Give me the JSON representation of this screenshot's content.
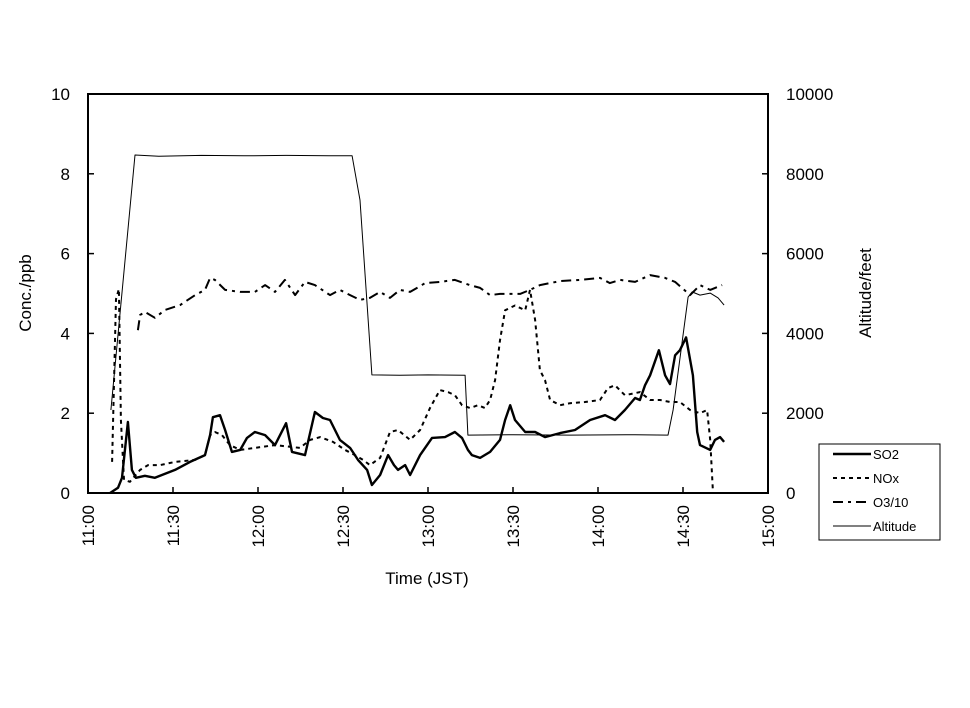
{
  "chart_data": {
    "type": "line",
    "title": "",
    "xlabel": "Time (JST)",
    "ylabel": "Conc./ppb",
    "y2label": "Altitude/feet",
    "x_unit": "minutes after 11:00",
    "xlim": [
      0,
      240
    ],
    "ylim": [
      0,
      10
    ],
    "y2lim": [
      0,
      10000
    ],
    "x_ticks": [
      {
        "value": 0,
        "label": "11:00"
      },
      {
        "value": 30,
        "label": "11:30"
      },
      {
        "value": 60,
        "label": "12:00"
      },
      {
        "value": 90,
        "label": "12:30"
      },
      {
        "value": 120,
        "label": "13:00"
      },
      {
        "value": 150,
        "label": "13:30"
      },
      {
        "value": 180,
        "label": "14:00"
      },
      {
        "value": 210,
        "label": "14:30"
      },
      {
        "value": 240,
        "label": "15:00"
      }
    ],
    "y_ticks": [
      {
        "value": 0,
        "label": "0"
      },
      {
        "value": 2,
        "label": "2"
      },
      {
        "value": 4,
        "label": "4"
      },
      {
        "value": 6,
        "label": "6"
      },
      {
        "value": 8,
        "label": "8"
      },
      {
        "value": 10,
        "label": "10"
      }
    ],
    "y2_ticks": [
      {
        "value": 0,
        "label": "0"
      },
      {
        "value": 2000,
        "label": "2000"
      },
      {
        "value": 4000,
        "label": "4000"
      },
      {
        "value": 6000,
        "label": "6000"
      },
      {
        "value": 8000,
        "label": "8000"
      },
      {
        "value": 10000,
        "label": "10000"
      }
    ],
    "grid": false,
    "legend_position": "bottom-right",
    "series": [
      {
        "name": "SO2",
        "axis": "left",
        "style": "solid-thick",
        "x": [
          7.8,
          10.6,
          12.0,
          14.1,
          15.5,
          16.9,
          20.1,
          23.6,
          27.2,
          30.7,
          36.0,
          41.3,
          43.1,
          44.1,
          46.6,
          48.4,
          50.8,
          53.7,
          56.1,
          58.9,
          62.5,
          66.0,
          69.9,
          72.0,
          76.6,
          80.1,
          82.9,
          85.4,
          88.9,
          92.5,
          95.3,
          98.5,
          100.2,
          103.1,
          105.9,
          108.0,
          109.4,
          111.9,
          113.7,
          117.2,
          121.4,
          126.0,
          129.5,
          132.0,
          134.1,
          135.5,
          138.4,
          141.9,
          145.4,
          147.2,
          149.0,
          150.7,
          154.3,
          157.8,
          161.3,
          166.6,
          171.9,
          177.2,
          182.5,
          186.0,
          189.5,
          193.1,
          194.8,
          196.6,
          198.4,
          201.5,
          203.7,
          205.4,
          207.2,
          208.9,
          211.1,
          213.5,
          215.0,
          216.0,
          219.6,
          221.3,
          223.1,
          224.5
        ],
        "y": [
          0,
          0.13,
          0.38,
          1.78,
          0.58,
          0.38,
          0.43,
          0.38,
          0.48,
          0.58,
          0.78,
          0.95,
          1.45,
          1.9,
          1.95,
          1.58,
          1.03,
          1.08,
          1.38,
          1.53,
          1.45,
          1.2,
          1.75,
          1.03,
          0.95,
          2.03,
          1.88,
          1.83,
          1.33,
          1.13,
          0.83,
          0.58,
          0.2,
          0.45,
          0.95,
          0.7,
          0.58,
          0.7,
          0.45,
          0.95,
          1.38,
          1.4,
          1.53,
          1.38,
          1.08,
          0.95,
          0.88,
          1.03,
          1.33,
          1.83,
          2.2,
          1.83,
          1.53,
          1.53,
          1.4,
          1.5,
          1.58,
          1.83,
          1.95,
          1.83,
          2.08,
          2.38,
          2.33,
          2.7,
          2.95,
          3.58,
          2.95,
          2.73,
          3.45,
          3.58,
          3.9,
          2.95,
          1.53,
          1.2,
          1.08,
          1.33,
          1.4,
          1.28
        ]
      },
      {
        "name": "NOx",
        "axis": "left",
        "style": "dotted",
        "x": [
          8.5,
          9.9,
          10.9,
          11.6,
          12.7,
          14.8,
          18.4,
          21.2,
          25.4,
          30.7,
          37.8,
          41.3,
          43.1,
          44.8,
          47.3,
          50.1,
          53.7,
          58.9,
          66.0,
          74.8,
          78.4,
          81.9,
          86.5,
          90.7,
          94.2,
          97.1,
          99.5,
          103.1,
          106.6,
          109.4,
          113.7,
          117.2,
          120.7,
          124.2,
          127.1,
          129.5,
          132.0,
          134.8,
          137.7,
          140.1,
          141.9,
          143.7,
          145.4,
          147.2,
          150.7,
          154.3,
          156.0,
          157.8,
          159.5,
          161.3,
          163.1,
          166.6,
          170.1,
          175.4,
          180.7,
          183.5,
          186.0,
          189.5,
          194.8,
          198.4,
          201.9,
          205.4,
          208.9,
          212.5,
          216.0,
          218.5,
          219.6,
          220.6
        ],
        "y": [
          0.78,
          4.86,
          5.11,
          1.83,
          0.33,
          0.28,
          0.58,
          0.7,
          0.7,
          0.78,
          0.83,
          0.95,
          1.45,
          1.53,
          1.45,
          1.2,
          1.08,
          1.13,
          1.2,
          1.13,
          1.33,
          1.4,
          1.28,
          1.08,
          0.95,
          0.83,
          0.7,
          0.88,
          1.53,
          1.58,
          1.33,
          1.58,
          2.13,
          2.58,
          2.53,
          2.45,
          2.2,
          2.13,
          2.2,
          2.13,
          2.33,
          2.83,
          3.83,
          4.58,
          4.7,
          4.58,
          5.09,
          4.34,
          3.08,
          2.83,
          2.33,
          2.2,
          2.25,
          2.28,
          2.33,
          2.63,
          2.7,
          2.45,
          2.53,
          2.33,
          2.33,
          2.28,
          2.28,
          2.08,
          2.0,
          2.08,
          1.33,
          0
        ]
      },
      {
        "name": "O3/10",
        "axis": "left",
        "style": "dash-dot",
        "x": [
          17.6,
          18.4,
          20.1,
          23.6,
          27.2,
          32.5,
          37.8,
          41.3,
          43.1,
          44.8,
          48.4,
          53.7,
          58.9,
          62.5,
          66.0,
          69.5,
          73.1,
          76.6,
          80.1,
          85.4,
          88.9,
          92.5,
          96.0,
          99.5,
          103.1,
          106.6,
          110.1,
          113.7,
          119.0,
          124.2,
          129.5,
          134.8,
          138.4,
          141.9,
          145.4,
          149.0,
          152.5,
          156.0,
          159.5,
          166.6,
          173.6,
          180.7,
          184.2,
          187.8,
          193.1,
          198.4,
          203.7,
          207.2,
          212.5,
          216.0,
          219.6,
          223.8
        ],
        "y": [
          4.08,
          4.46,
          4.54,
          4.39,
          4.59,
          4.71,
          4.96,
          5.09,
          5.39,
          5.34,
          5.09,
          5.04,
          5.04,
          5.21,
          5.04,
          5.34,
          4.96,
          5.29,
          5.21,
          4.96,
          5.09,
          4.96,
          4.84,
          4.89,
          5.04,
          4.89,
          5.09,
          5.04,
          5.26,
          5.29,
          5.34,
          5.21,
          5.14,
          4.96,
          4.99,
          4.99,
          4.99,
          5.09,
          5.21,
          5.31,
          5.34,
          5.39,
          5.26,
          5.34,
          5.29,
          5.46,
          5.39,
          5.29,
          4.96,
          5.21,
          5.09,
          5.21
        ]
      },
      {
        "name": "Altitude",
        "axis": "right",
        "style": "solid-thin",
        "x": [
          8.1,
          16.6,
          25,
          40,
          55,
          70,
          85,
          93.2,
          96.0,
          100.2,
          110,
          120,
          133.1,
          134.1,
          150,
          170,
          190,
          204.7,
          206.5,
          211.8,
          213.2,
          216.0,
          219.6,
          222.4,
          224.5
        ],
        "y": [
          2080,
          8470,
          8440,
          8460,
          8450,
          8460,
          8450,
          8450,
          7340,
          2960,
          2950,
          2960,
          2950,
          1450,
          1460,
          1450,
          1460,
          1450,
          2080,
          4910,
          5040,
          4960,
          5010,
          4890,
          4710
        ]
      }
    ]
  }
}
